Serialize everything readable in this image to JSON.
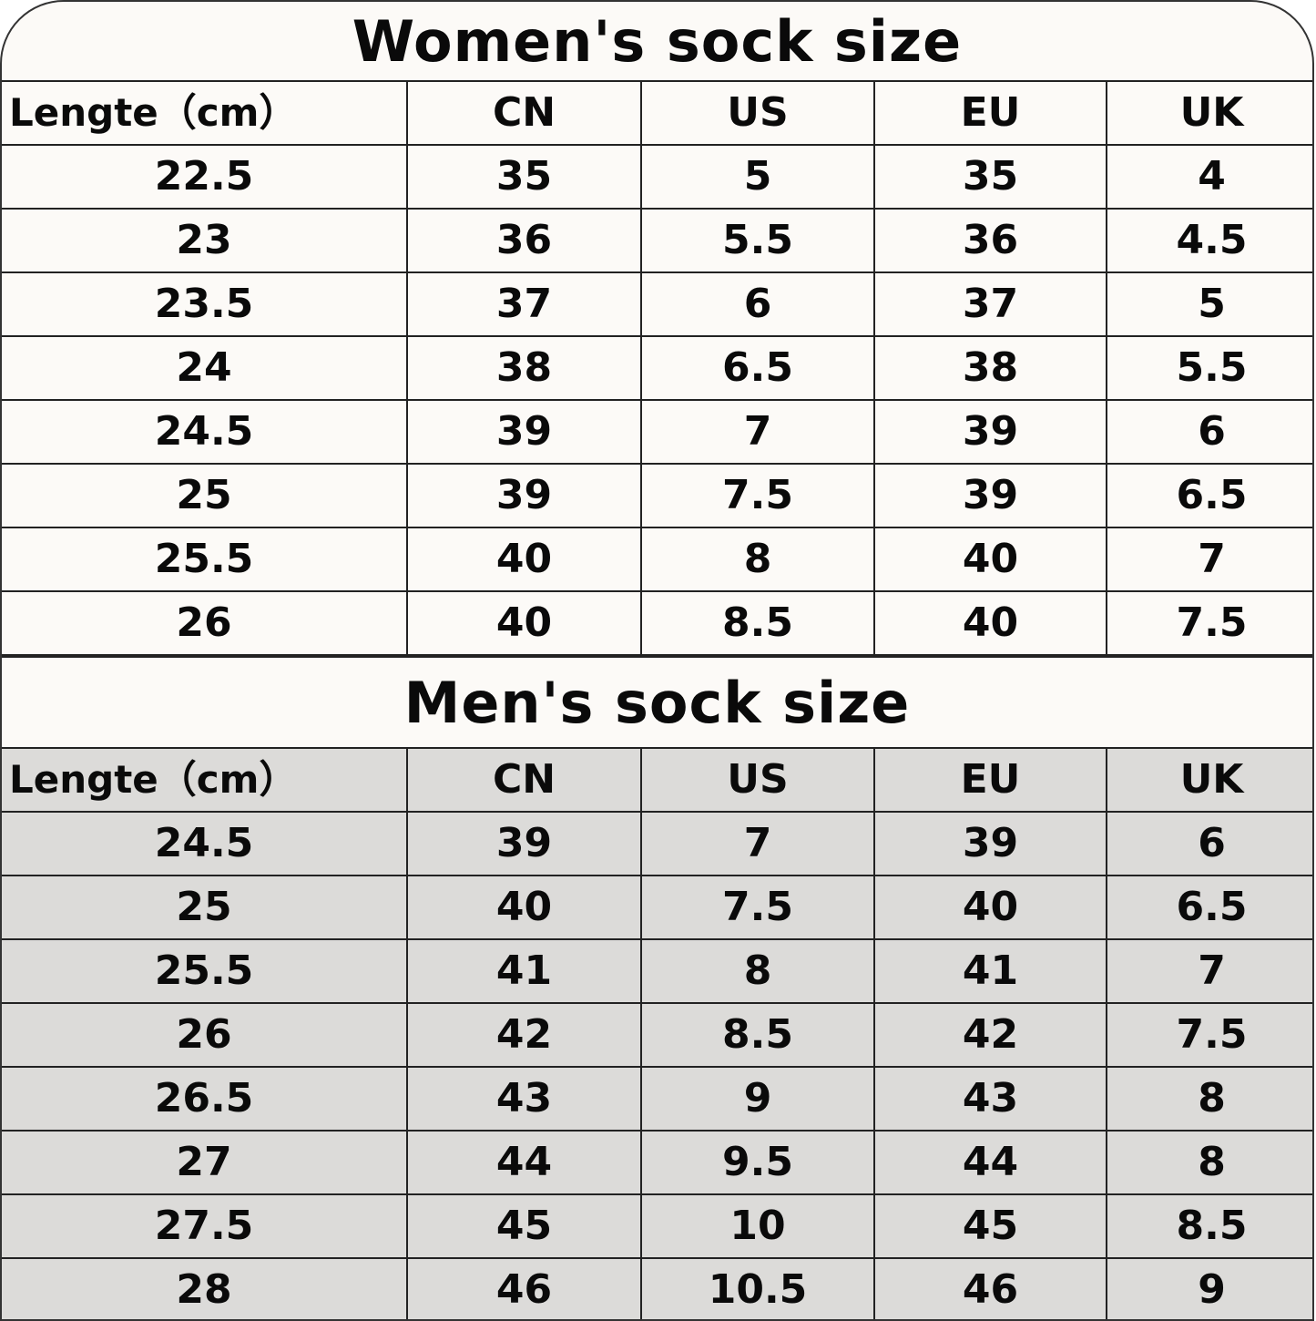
{
  "women": {
    "title": "Women's sock size",
    "headers": [
      "Lengte（cm）",
      "CN",
      "US",
      "EU",
      "UK"
    ],
    "rows": [
      [
        "22.5",
        "35",
        "5",
        "35",
        "4"
      ],
      [
        "23",
        "36",
        "5.5",
        "36",
        "4.5"
      ],
      [
        "23.5",
        "37",
        "6",
        "37",
        "5"
      ],
      [
        "24",
        "38",
        "6.5",
        "38",
        "5.5"
      ],
      [
        "24.5",
        "39",
        "7",
        "39",
        "6"
      ],
      [
        "25",
        "39",
        "7.5",
        "39",
        "6.5"
      ],
      [
        "25.5",
        "40",
        "8",
        "40",
        "7"
      ],
      [
        "26",
        "40",
        "8.5",
        "40",
        "7.5"
      ]
    ]
  },
  "men": {
    "title": "Men's sock size",
    "headers": [
      "Lengte（cm）",
      "CN",
      "US",
      "EU",
      "UK"
    ],
    "rows": [
      [
        "24.5",
        "39",
        "7",
        "39",
        "6"
      ],
      [
        "25",
        "40",
        "7.5",
        "40",
        "6.5"
      ],
      [
        "25.5",
        "41",
        "8",
        "41",
        "7"
      ],
      [
        "26",
        "42",
        "8.5",
        "42",
        "7.5"
      ],
      [
        "26.5",
        "43",
        "9",
        "43",
        "8"
      ],
      [
        "27",
        "44",
        "9.5",
        "44",
        "8"
      ],
      [
        "27.5",
        "45",
        "10",
        "45",
        "8.5"
      ],
      [
        "28",
        "46",
        "10.5",
        "46",
        "9"
      ]
    ]
  },
  "colors": {
    "women_bg": "#fcfaf7",
    "men_bg": "#dcdbd9",
    "text": "#0a0a0a",
    "border": "#222222"
  }
}
